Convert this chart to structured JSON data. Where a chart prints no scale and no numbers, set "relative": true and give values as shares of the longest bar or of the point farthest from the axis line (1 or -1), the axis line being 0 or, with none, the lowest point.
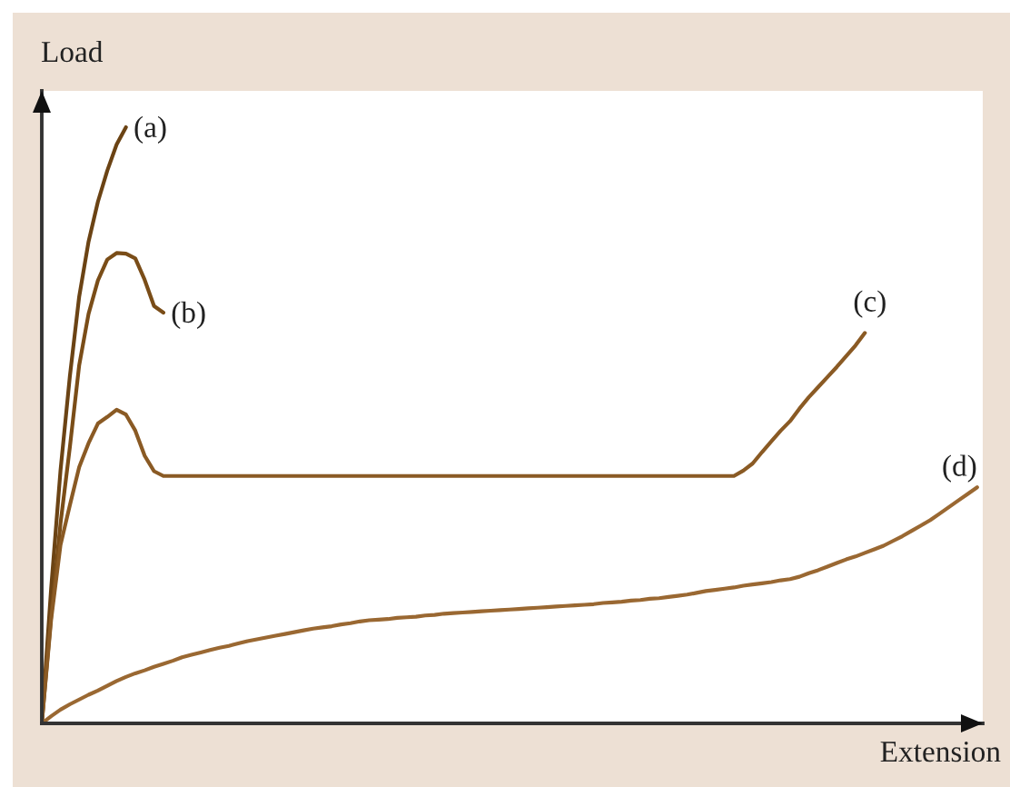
{
  "chart_data": {
    "type": "line",
    "relative": true,
    "xlabel": "Extension",
    "ylabel": "Load",
    "line_style": "solid",
    "categories": [
      null,
      null,
      null,
      null,
      null,
      null,
      null,
      null,
      null,
      null,
      null,
      null,
      null,
      null,
      null,
      null,
      null,
      null,
      null,
      null,
      null,
      null,
      null,
      null,
      null,
      null,
      null,
      null,
      null,
      null,
      null,
      null,
      null,
      null,
      null,
      null,
      null,
      null,
      null,
      null,
      null,
      null,
      null,
      null,
      null,
      null,
      null,
      null,
      null,
      null,
      null,
      null,
      null,
      null,
      null,
      null,
      null,
      null,
      null,
      null,
      null,
      null,
      null,
      null,
      null,
      null,
      null,
      null,
      null,
      null,
      null,
      null,
      null,
      null,
      null,
      null,
      null,
      null,
      null,
      null,
      null,
      null,
      null,
      null,
      null,
      null,
      null,
      null,
      null,
      null,
      null,
      null,
      null,
      null,
      null,
      null,
      null,
      null,
      null,
      null,
      null
    ],
    "series": [
      {
        "name": "(a)",
        "color": "#6b4314",
        "values": [
          0,
          0.226,
          0.424,
          0.582,
          0.716,
          0.808,
          0.875,
          0.927,
          0.971,
          1.0,
          null,
          null,
          null,
          null,
          null,
          null,
          null,
          null,
          null,
          null,
          null,
          null,
          null,
          null,
          null,
          null,
          null,
          null,
          null,
          null,
          null,
          null,
          null,
          null,
          null,
          null,
          null,
          null,
          null,
          null,
          null,
          null,
          null,
          null,
          null,
          null,
          null,
          null,
          null,
          null,
          null,
          null,
          null,
          null,
          null,
          null,
          null,
          null,
          null,
          null,
          null,
          null,
          null,
          null,
          null,
          null,
          null,
          null,
          null,
          null,
          null,
          null,
          null,
          null,
          null,
          null,
          null,
          null,
          null,
          null,
          null,
          null,
          null,
          null,
          null,
          null,
          null,
          null,
          null,
          null,
          null,
          null,
          null,
          null,
          null,
          null,
          null,
          null,
          null,
          null,
          null
        ]
      },
      {
        "name": "(b)",
        "color": "#7a4d18",
        "values": [
          0,
          0.18,
          0.335,
          0.463,
          0.601,
          0.687,
          0.743,
          0.778,
          0.789,
          0.788,
          0.78,
          0.744,
          0.7,
          0.689,
          null,
          null,
          null,
          null,
          null,
          null,
          null,
          null,
          null,
          null,
          null,
          null,
          null,
          null,
          null,
          null,
          null,
          null,
          null,
          null,
          null,
          null,
          null,
          null,
          null,
          null,
          null,
          null,
          null,
          null,
          null,
          null,
          null,
          null,
          null,
          null,
          null,
          null,
          null,
          null,
          null,
          null,
          null,
          null,
          null,
          null,
          null,
          null,
          null,
          null,
          null,
          null,
          null,
          null,
          null,
          null,
          null,
          null,
          null,
          null,
          null,
          null,
          null,
          null,
          null,
          null,
          null,
          null,
          null,
          null,
          null,
          null,
          null,
          null,
          null,
          null,
          null,
          null,
          null,
          null,
          null,
          null,
          null,
          null,
          null,
          null,
          null
        ]
      },
      {
        "name": "(c)",
        "color": "#8a5a24",
        "values": [
          0,
          0.174,
          0.299,
          0.366,
          0.43,
          0.47,
          0.503,
          0.514,
          0.526,
          0.518,
          0.491,
          0.449,
          0.423,
          0.415,
          0.415,
          0.415,
          0.415,
          0.415,
          0.415,
          0.415,
          0.415,
          0.415,
          0.415,
          0.415,
          0.415,
          0.415,
          0.415,
          0.415,
          0.415,
          0.415,
          0.415,
          0.415,
          0.415,
          0.415,
          0.415,
          0.415,
          0.415,
          0.415,
          0.415,
          0.415,
          0.415,
          0.415,
          0.415,
          0.415,
          0.415,
          0.415,
          0.415,
          0.415,
          0.415,
          0.415,
          0.415,
          0.415,
          0.415,
          0.415,
          0.415,
          0.415,
          0.415,
          0.415,
          0.415,
          0.415,
          0.415,
          0.415,
          0.415,
          0.415,
          0.415,
          0.415,
          0.415,
          0.415,
          0.415,
          0.415,
          0.415,
          0.415,
          0.415,
          0.415,
          0.415,
          0.424,
          0.436,
          0.455,
          0.473,
          0.491,
          0.507,
          0.528,
          0.547,
          0.564,
          0.581,
          0.598,
          0.616,
          0.634,
          0.655,
          null,
          null,
          null,
          null,
          null,
          null,
          null,
          null,
          null,
          null,
          null,
          null
        ]
      },
      {
        "name": "(d)",
        "color": "#9a6832",
        "values": [
          0,
          0.012,
          0.023,
          0.032,
          0.04,
          0.048,
          0.055,
          0.063,
          0.071,
          0.078,
          0.084,
          0.089,
          0.095,
          0.1,
          0.105,
          0.111,
          0.115,
          0.119,
          0.123,
          0.127,
          0.13,
          0.134,
          0.138,
          0.141,
          0.144,
          0.147,
          0.15,
          0.153,
          0.156,
          0.159,
          0.161,
          0.163,
          0.166,
          0.168,
          0.171,
          0.173,
          0.174,
          0.175,
          0.177,
          0.178,
          0.179,
          0.181,
          0.182,
          0.184,
          0.185,
          0.186,
          0.187,
          0.188,
          0.189,
          0.19,
          0.191,
          0.192,
          0.193,
          0.194,
          0.195,
          0.196,
          0.197,
          0.198,
          0.199,
          0.2,
          0.202,
          0.203,
          0.204,
          0.206,
          0.207,
          0.209,
          0.21,
          0.212,
          0.214,
          0.216,
          0.219,
          0.222,
          0.224,
          0.226,
          0.228,
          0.231,
          0.233,
          0.235,
          0.237,
          0.24,
          0.242,
          0.246,
          0.252,
          0.257,
          0.263,
          0.269,
          0.275,
          0.28,
          0.286,
          0.292,
          0.298,
          0.306,
          0.314,
          0.323,
          0.332,
          0.341,
          0.352,
          0.363,
          0.374,
          0.385,
          0.396
        ]
      }
    ]
  }
}
